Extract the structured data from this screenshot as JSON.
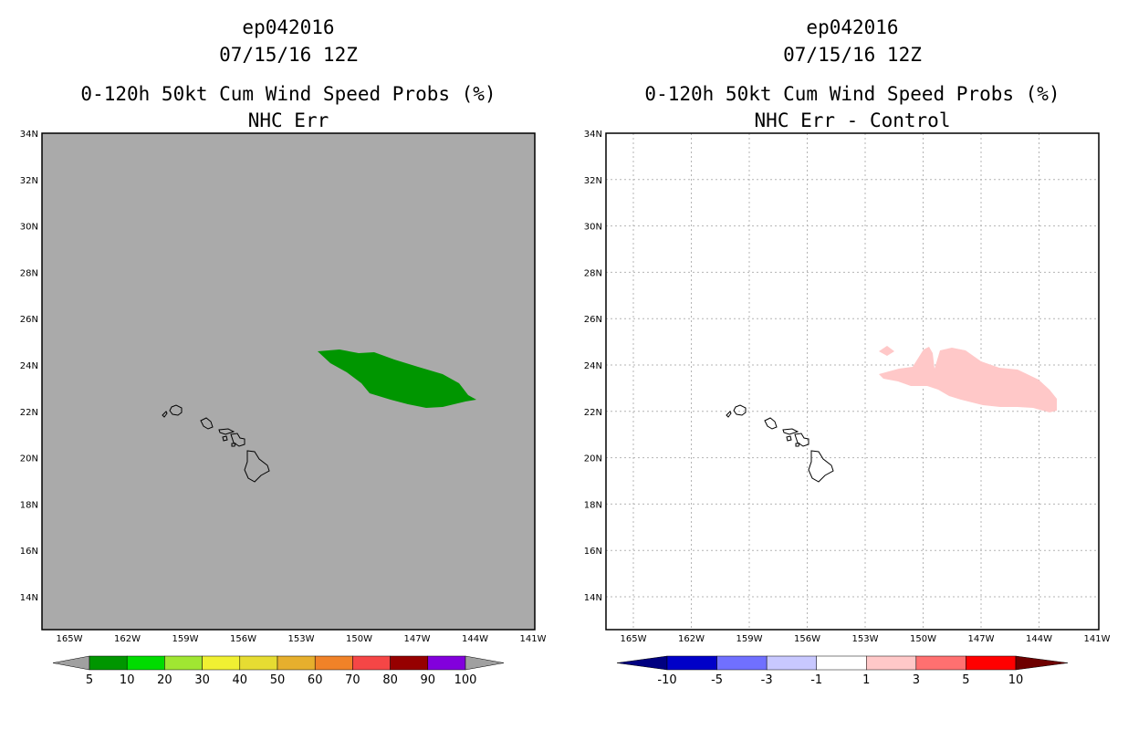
{
  "panels": [
    {
      "id": "left",
      "title_storm": "ep042016",
      "title_time": "07/15/16 12Z",
      "title_product": "0-120h 50kt Cum Wind Speed Probs (%)",
      "subtitle": "NHC Err",
      "background_color": "#aaaaaa",
      "colorbar_labels": [
        "5",
        "10",
        "20",
        "30",
        "40",
        "50",
        "60",
        "70",
        "80",
        "90",
        "100"
      ],
      "colorbar_colors": [
        "#009600",
        "#00dc00",
        "#a0e632",
        "#f0f032",
        "#e6dc32",
        "#e6af2d",
        "#f08228",
        "#f54646",
        "#960000",
        "#8200dc"
      ]
    },
    {
      "id": "right",
      "title_storm": "ep042016",
      "title_time": "07/15/16 12Z",
      "title_product": "0-120h 50kt Cum Wind Speed Probs (%)",
      "subtitle": "NHC Err - Control",
      "background_color": "#ffffff",
      "colorbar_labels": [
        "-10",
        "-5",
        "-3",
        "-1",
        "1",
        "3",
        "5",
        "10"
      ],
      "colorbar_colors": [
        "#0000c8",
        "#7070ff",
        "#c8c8ff",
        "#ffffff",
        "#ffc8c8",
        "#ff7070",
        "#ff0000"
      ]
    }
  ],
  "map": {
    "lat_labels": [
      "14N",
      "16N",
      "18N",
      "20N",
      "22N",
      "24N",
      "26N",
      "28N",
      "30N",
      "32N",
      "34N"
    ],
    "lon_labels": [
      "165W",
      "162W",
      "159W",
      "156W",
      "153W",
      "150W",
      "147W",
      "144W",
      "141W"
    ]
  },
  "colors": {
    "prob_area": "#009600",
    "diff_area": "#ffc8c8",
    "cbar_low_end": "#000080",
    "cbar_high_end": "#6e0000"
  }
}
